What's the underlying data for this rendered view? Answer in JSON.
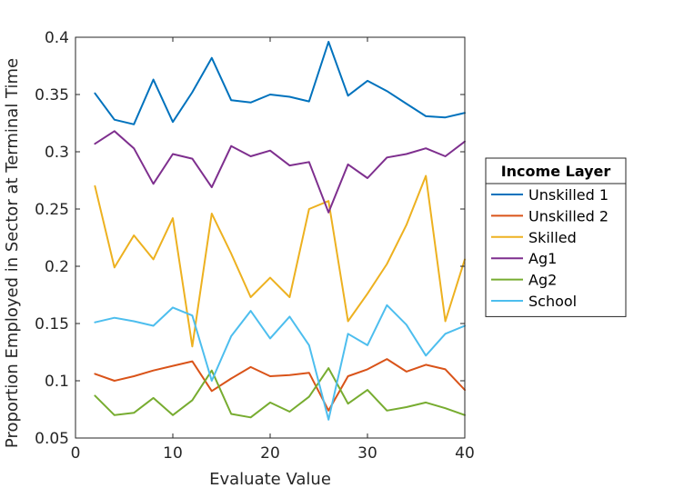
{
  "chart_data": {
    "type": "line",
    "xlabel": "Evaluate Value",
    "ylabel": "Proportion Employed in Sector at Terminal Time",
    "xlim": [
      0,
      40
    ],
    "ylim": [
      0.05,
      0.4
    ],
    "xticks": [
      0,
      10,
      20,
      30,
      40
    ],
    "xtick_labels": [
      "0",
      "10",
      "20",
      "30",
      "40"
    ],
    "yticks": [
      0.05,
      0.1,
      0.15,
      0.2,
      0.25,
      0.3,
      0.35,
      0.4
    ],
    "ytick_labels": [
      "0.05",
      "0.1",
      "0.15",
      "0.2",
      "0.25",
      "0.3",
      "0.35",
      "0.4"
    ],
    "grid": false,
    "legend": {
      "title": "Income Layer",
      "position": "outside-right"
    },
    "x": [
      2,
      4,
      6,
      8,
      10,
      12,
      14,
      16,
      18,
      20,
      22,
      24,
      26,
      28,
      30,
      32,
      34,
      36,
      38,
      40
    ],
    "series": [
      {
        "name": "Unskilled 1",
        "color": "#0072BD",
        "values": [
          0.351,
          0.328,
          0.324,
          0.363,
          0.326,
          0.352,
          0.382,
          0.345,
          0.343,
          0.35,
          0.348,
          0.344,
          0.396,
          0.349,
          0.362,
          0.353,
          0.342,
          0.331,
          0.33,
          0.334
        ]
      },
      {
        "name": "Unskilled 2",
        "color": "#D95319",
        "values": [
          0.106,
          0.1,
          0.104,
          0.109,
          0.113,
          0.117,
          0.091,
          0.102,
          0.112,
          0.104,
          0.105,
          0.107,
          0.074,
          0.104,
          0.11,
          0.119,
          0.108,
          0.114,
          0.11,
          0.092
        ]
      },
      {
        "name": "Skilled",
        "color": "#EDB120",
        "values": [
          0.27,
          0.199,
          0.227,
          0.206,
          0.242,
          0.13,
          0.246,
          0.211,
          0.173,
          0.19,
          0.173,
          0.25,
          0.257,
          0.152,
          0.176,
          0.202,
          0.236,
          0.279,
          0.152,
          0.206
        ]
      },
      {
        "name": "Ag1",
        "color": "#7E2F8E",
        "values": [
          0.307,
          0.318,
          0.303,
          0.272,
          0.298,
          0.294,
          0.269,
          0.305,
          0.296,
          0.301,
          0.288,
          0.291,
          0.247,
          0.289,
          0.277,
          0.295,
          0.298,
          0.303,
          0.296,
          0.309
        ]
      },
      {
        "name": "Ag2",
        "color": "#77AC30",
        "values": [
          0.087,
          0.07,
          0.072,
          0.085,
          0.07,
          0.083,
          0.109,
          0.071,
          0.068,
          0.081,
          0.073,
          0.086,
          0.111,
          0.08,
          0.092,
          0.074,
          0.077,
          0.081,
          0.076,
          0.07
        ]
      },
      {
        "name": "School",
        "color": "#4DBEEE",
        "values": [
          0.151,
          0.155,
          0.152,
          0.148,
          0.164,
          0.157,
          0.1,
          0.139,
          0.161,
          0.137,
          0.156,
          0.131,
          0.066,
          0.141,
          0.131,
          0.166,
          0.149,
          0.122,
          0.141,
          0.148
        ]
      }
    ]
  }
}
